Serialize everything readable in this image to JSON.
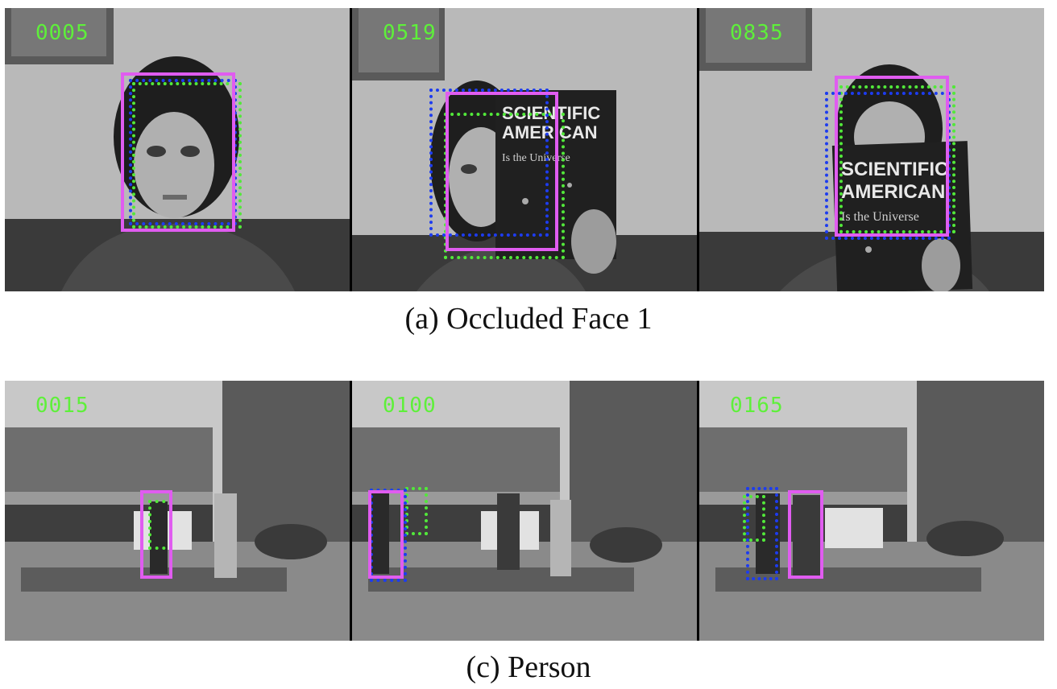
{
  "figure": {
    "panels": [
      {
        "caption": "(a)  Occluded Face 1",
        "frames": [
          {
            "frame_number": "0005",
            "scene": "woman-face"
          },
          {
            "frame_number": "0519",
            "scene": "face-half-occluded-by-magazine"
          },
          {
            "frame_number": "0835",
            "scene": "face-occluded-by-magazine"
          }
        ],
        "magazine_text": {
          "title_line1": "SCIENTIFIC",
          "title_line2": "AMERICAN",
          "subtitle": "Is the Universe"
        }
      },
      {
        "caption": "(c)  Person",
        "frames": [
          {
            "frame_number": "0015",
            "scene": "courtyard-pedestrians"
          },
          {
            "frame_number": "0100",
            "scene": "courtyard-pedestrians"
          },
          {
            "frame_number": "0165",
            "scene": "courtyard-pedestrians"
          }
        ]
      }
    ],
    "box_colors": {
      "magenta": "#e05cf0",
      "green": "#52e83a",
      "blue": "#1d3cf0"
    },
    "frame_number_color": "#5ef03a"
  }
}
